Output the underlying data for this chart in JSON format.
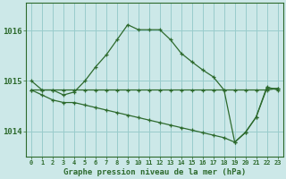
{
  "title": "Graphe pression niveau de la mer (hPa)",
  "background_color": "#cce8e8",
  "grid_color": "#99cccc",
  "line_color": "#2d6a2d",
  "x_labels": [
    "0",
    "1",
    "2",
    "3",
    "4",
    "5",
    "6",
    "7",
    "8",
    "9",
    "10",
    "11",
    "12",
    "13",
    "14",
    "15",
    "16",
    "17",
    "18",
    "19",
    "20",
    "21",
    "22",
    "23"
  ],
  "y_ticks": [
    1014,
    1015,
    1016
  ],
  "ylim": [
    1013.5,
    1016.55
  ],
  "xlim": [
    -0.5,
    23.5
  ],
  "line1": [
    1015.0,
    1014.82,
    1014.82,
    1014.72,
    1014.78,
    1015.0,
    1015.28,
    1015.52,
    1015.82,
    1016.12,
    1016.02,
    1016.02,
    1016.02,
    1015.82,
    1015.55,
    1015.38,
    1015.22,
    1015.08,
    1014.82,
    1013.78,
    1013.98,
    1014.28,
    1014.88,
    1014.82
  ],
  "line2": [
    1014.82,
    1014.82,
    1014.82,
    1014.82,
    1014.82,
    1014.82,
    1014.82,
    1014.82,
    1014.82,
    1014.82,
    1014.82,
    1014.82,
    1014.82,
    1014.82,
    1014.82,
    1014.82,
    1014.82,
    1014.82,
    1014.82,
    1014.82,
    1014.82,
    1014.82,
    1014.82,
    1014.85
  ],
  "line3": [
    1014.82,
    1014.72,
    1014.62,
    1014.57,
    1014.57,
    1014.52,
    1014.47,
    1014.42,
    1014.37,
    1014.32,
    1014.27,
    1014.22,
    1014.17,
    1014.12,
    1014.07,
    1014.02,
    1013.97,
    1013.92,
    1013.87,
    1013.78,
    1013.97,
    1014.28,
    1014.85,
    1014.85
  ]
}
